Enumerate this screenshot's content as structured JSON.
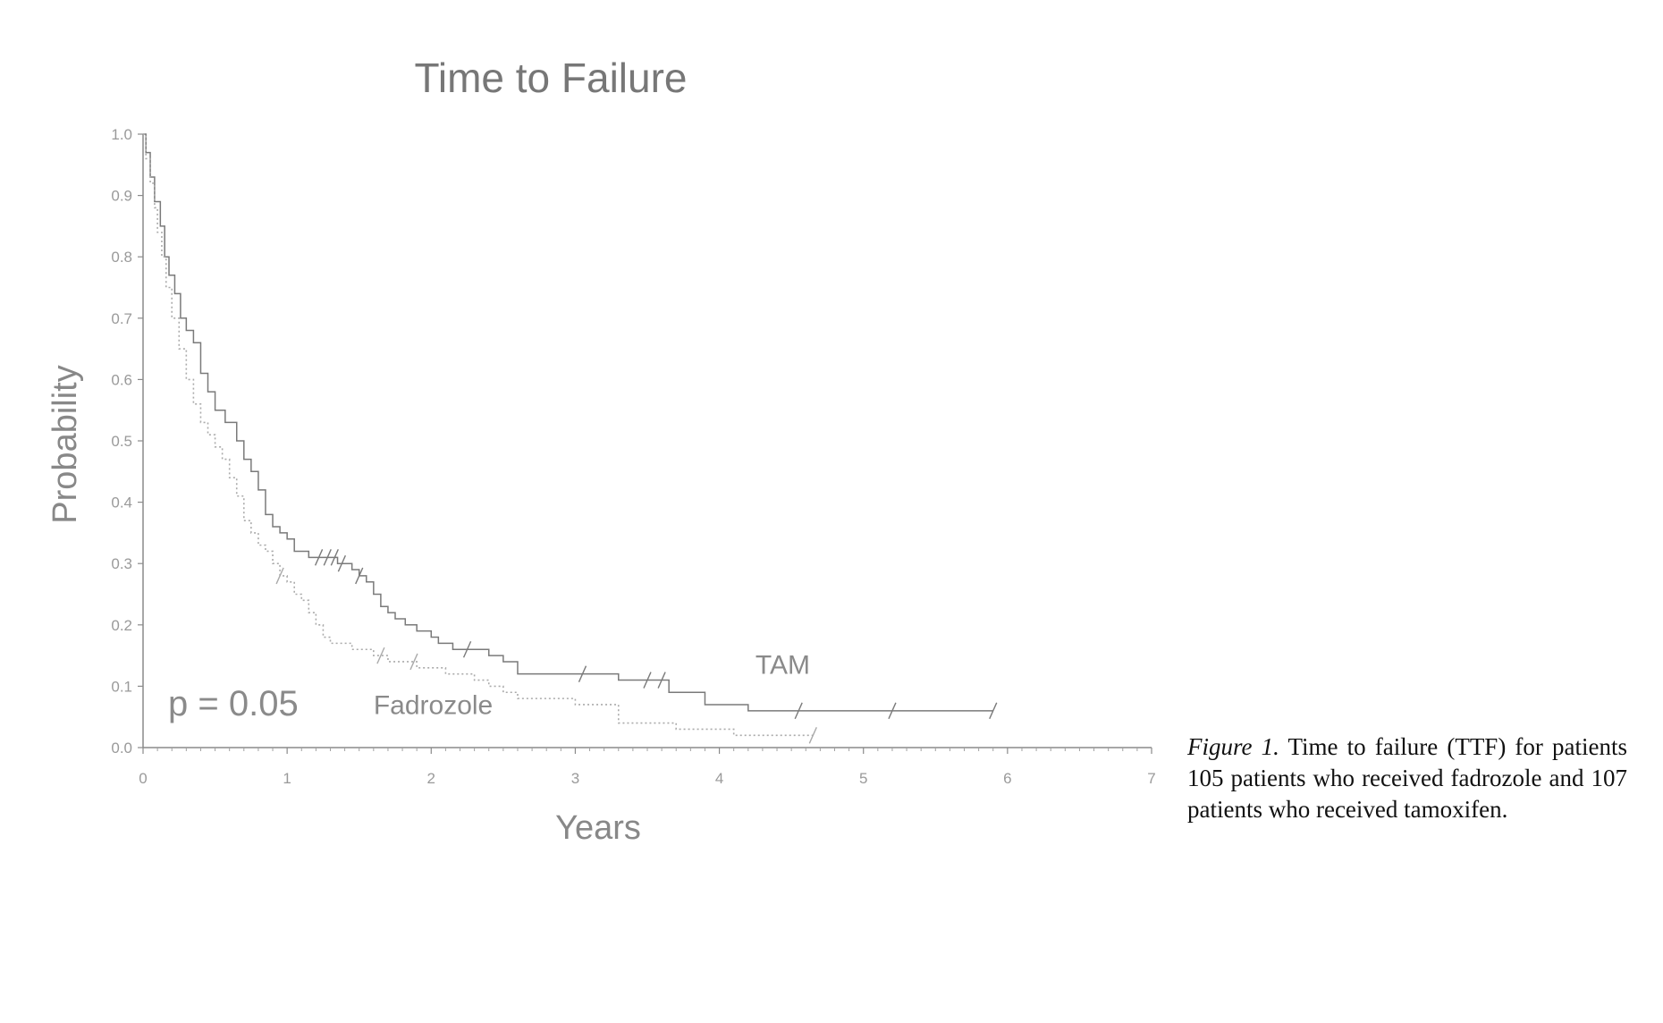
{
  "caption": {
    "label": "Figure 1.",
    "text": "Time to failure (TTF) for patients 105 patients who received fadrozole and 107 patients who received tamoxifen."
  },
  "chart_data": {
    "type": "line",
    "title": "Time to Failure",
    "xlabel": "Years",
    "ylabel": "Probability",
    "xlim": [
      0,
      7
    ],
    "ylim": [
      0,
      1
    ],
    "xticks": [
      "0",
      "1",
      "2",
      "3",
      "4",
      "5",
      "6",
      "7"
    ],
    "yticks": [
      "0.0",
      "0.1",
      "0.2",
      "0.3",
      "0.4",
      "0.5",
      "0.6",
      "0.7",
      "0.8",
      "0.9",
      "1.0"
    ],
    "p_value": "p = 0.05",
    "grid": false,
    "series": [
      {
        "name": "TAM",
        "style": "solid",
        "color": "#7a7a7a",
        "x": [
          0,
          0.02,
          0.05,
          0.08,
          0.12,
          0.15,
          0.18,
          0.22,
          0.26,
          0.3,
          0.35,
          0.4,
          0.45,
          0.5,
          0.57,
          0.65,
          0.7,
          0.75,
          0.8,
          0.85,
          0.9,
          0.95,
          1.0,
          1.05,
          1.15,
          1.25,
          1.35,
          1.45,
          1.5,
          1.55,
          1.6,
          1.65,
          1.7,
          1.75,
          1.82,
          1.9,
          2.0,
          2.05,
          2.15,
          2.25,
          2.4,
          2.5,
          2.6,
          2.75,
          3.0,
          3.3,
          3.5,
          3.65,
          3.9,
          4.2,
          4.6,
          5.2,
          5.9
        ],
        "y": [
          1.0,
          0.97,
          0.93,
          0.89,
          0.85,
          0.8,
          0.77,
          0.74,
          0.7,
          0.68,
          0.66,
          0.61,
          0.58,
          0.55,
          0.53,
          0.5,
          0.47,
          0.45,
          0.42,
          0.38,
          0.36,
          0.35,
          0.34,
          0.32,
          0.31,
          0.31,
          0.3,
          0.29,
          0.28,
          0.27,
          0.25,
          0.23,
          0.22,
          0.21,
          0.2,
          0.19,
          0.18,
          0.17,
          0.16,
          0.16,
          0.15,
          0.14,
          0.12,
          0.12,
          0.12,
          0.11,
          0.11,
          0.09,
          0.07,
          0.06,
          0.06,
          0.06,
          0.06
        ],
        "censored": [
          1.22,
          1.28,
          1.33,
          1.38,
          1.5,
          2.25,
          3.05,
          3.5,
          3.6,
          4.55,
          5.2,
          5.9
        ]
      },
      {
        "name": "Fadrozole",
        "style": "dotted",
        "color": "#aaaaaa",
        "x": [
          0,
          0.02,
          0.05,
          0.08,
          0.1,
          0.13,
          0.16,
          0.2,
          0.25,
          0.3,
          0.35,
          0.4,
          0.45,
          0.5,
          0.55,
          0.6,
          0.65,
          0.7,
          0.75,
          0.8,
          0.85,
          0.9,
          0.95,
          1.0,
          1.05,
          1.1,
          1.15,
          1.2,
          1.25,
          1.3,
          1.35,
          1.45,
          1.6,
          1.7,
          1.8,
          1.9,
          2.0,
          2.1,
          2.2,
          2.3,
          2.4,
          2.5,
          2.6,
          2.8,
          3.0,
          3.3,
          3.7,
          4.1,
          4.4,
          4.65
        ],
        "y": [
          1.0,
          0.96,
          0.92,
          0.88,
          0.84,
          0.8,
          0.75,
          0.7,
          0.65,
          0.6,
          0.56,
          0.53,
          0.51,
          0.49,
          0.47,
          0.44,
          0.41,
          0.37,
          0.35,
          0.33,
          0.32,
          0.3,
          0.28,
          0.27,
          0.25,
          0.24,
          0.22,
          0.2,
          0.18,
          0.17,
          0.17,
          0.16,
          0.15,
          0.14,
          0.14,
          0.13,
          0.13,
          0.12,
          0.12,
          0.11,
          0.1,
          0.09,
          0.08,
          0.08,
          0.07,
          0.04,
          0.03,
          0.02,
          0.02,
          0.02
        ],
        "censored": [
          0.95,
          1.65,
          1.88,
          4.65
        ]
      }
    ],
    "annotations": [
      {
        "text": "TAM",
        "x": 4.25,
        "y": 0.12
      },
      {
        "text": "Fadrozole",
        "x": 1.6,
        "y": 0.055
      }
    ]
  }
}
